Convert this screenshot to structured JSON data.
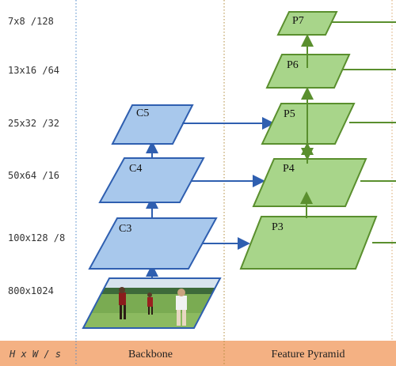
{
  "colors": {
    "backbone_fill": "#a8c8ec",
    "backbone_stroke": "#2f5fb0",
    "pyramid_fill": "#a8d58a",
    "pyramid_stroke": "#5a8f2e",
    "footer_bg": "#f4b183",
    "divider_blue": "#4a86c8",
    "divider_orange": "#d9a66a"
  },
  "scale_column": {
    "rows": [
      "7x8 /128",
      "13x16 /64",
      "25x32 /32",
      "50x64 /16",
      "100x128 /8",
      "800x1024"
    ]
  },
  "backbone": {
    "levels": [
      "C5",
      "C4",
      "C3"
    ],
    "input_image_icon": "photo-input"
  },
  "feature_pyramid": {
    "levels": [
      "P7",
      "P6",
      "P5",
      "P4",
      "P3"
    ]
  },
  "footer": {
    "scale_header": "H x W / s",
    "backbone": "Backbone",
    "feature_pyramid": "Feature Pyramid"
  }
}
